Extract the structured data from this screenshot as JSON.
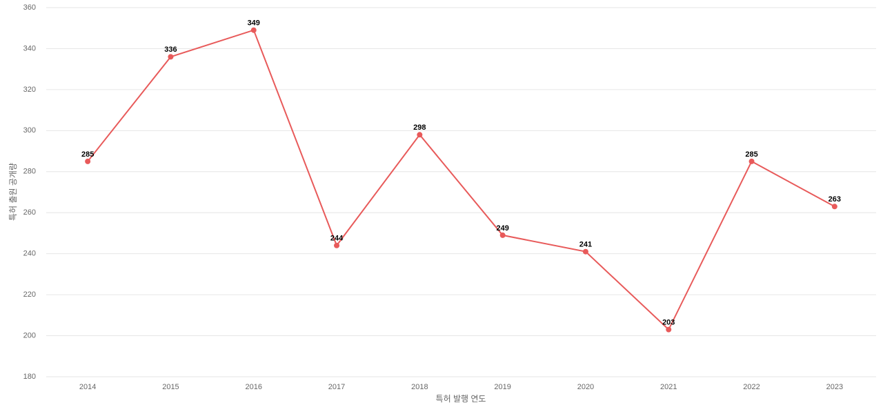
{
  "chart_data": {
    "type": "line",
    "x_label": "특허 발행 연도",
    "y_label": "특허 출원 공개량",
    "categories": [
      "2014",
      "2015",
      "2016",
      "2017",
      "2018",
      "2019",
      "2020",
      "2021",
      "2022",
      "2023"
    ],
    "values": [
      285,
      336,
      349,
      244,
      298,
      249,
      241,
      203,
      285,
      263
    ],
    "color": "#e85a5a",
    "ylim": [
      180,
      360
    ],
    "yticks": [
      180,
      200,
      220,
      240,
      260,
      280,
      300,
      320,
      340,
      360
    ],
    "grid": true
  }
}
